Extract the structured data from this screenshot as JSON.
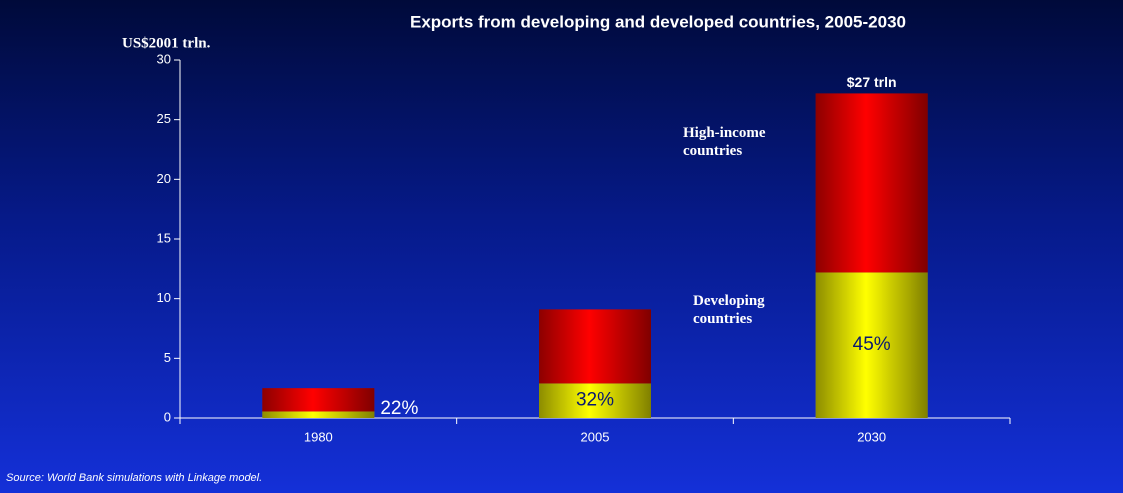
{
  "chart_data": {
    "type": "stacked_bar",
    "title": "Exports from developing and developed countries, 2005-2030",
    "y_label": "US$2001 trln.",
    "categories": [
      "1980",
      "2005",
      "2030"
    ],
    "series": [
      {
        "name": "Developing countries",
        "color": "#ffff00",
        "values": [
          0.55,
          2.9,
          12.2
        ]
      },
      {
        "name": "High-income countries",
        "color": "#ff0000",
        "values": [
          1.95,
          6.2,
          15.0
        ]
      }
    ],
    "share_labels": [
      "22%",
      "32%",
      "45%"
    ],
    "total_label": "$27 trln",
    "ylim": [
      0,
      30
    ],
    "yticks": [
      0,
      5,
      10,
      15,
      20,
      25,
      30
    ],
    "source": "Source: World Bank simulations with Linkage model."
  }
}
